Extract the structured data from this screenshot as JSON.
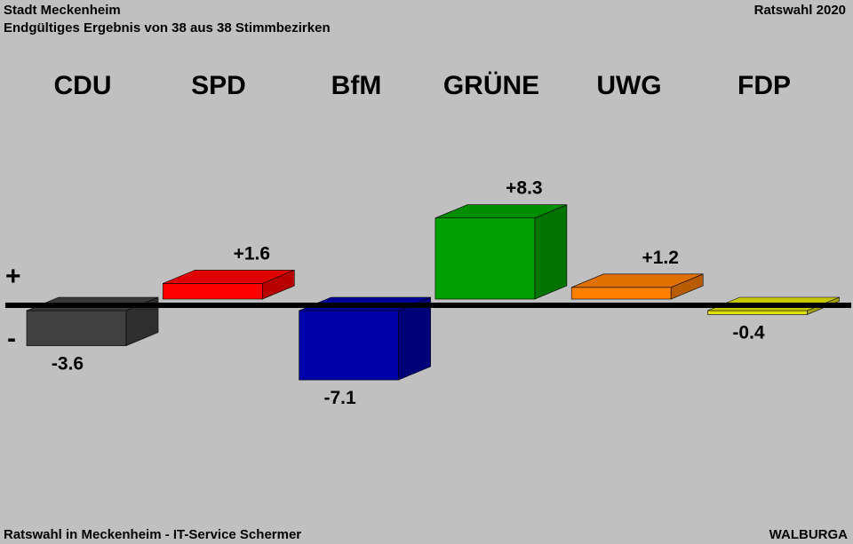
{
  "header": {
    "title": "Stadt Meckenheim",
    "subtitle": "Endgültiges Ergebnis von 38 aus 38 Stimmbezirken",
    "election": "Ratswahl 2020"
  },
  "footer": {
    "left": "Ratswahl in Meckenheim - IT-Service Schermer",
    "right": "WALBURGA"
  },
  "chart_data": {
    "type": "bar",
    "categories": [
      "CDU",
      "SPD",
      "BfM",
      "GRÜNE",
      "UWG",
      "FDP"
    ],
    "values": [
      -3.6,
      1.6,
      -7.1,
      8.3,
      1.2,
      -0.4
    ],
    "value_labels": [
      "-3.6",
      "+1.6",
      "-7.1",
      "+8.3",
      "+1.2",
      "-0.4"
    ],
    "colors": [
      "#404040",
      "#ff0000",
      "#0000a8",
      "#00a000",
      "#ff8000",
      "#e0e000"
    ],
    "plus_label": "+",
    "minus_label": "-"
  }
}
